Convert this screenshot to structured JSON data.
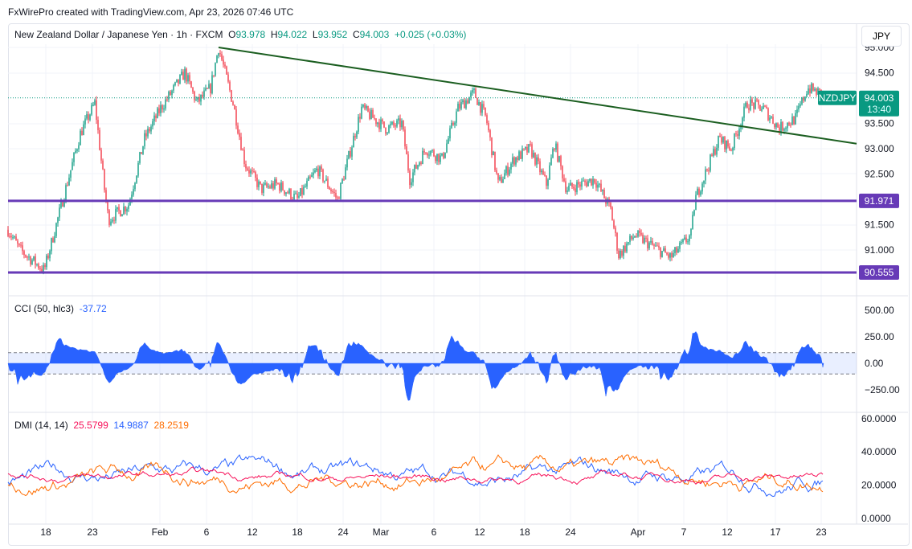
{
  "header": {
    "credit": "FxWirePro created with TradingView.com, Apr 23, 2026 07:46 UTC"
  },
  "legend": {
    "symbol": "New Zealand Dollar / Japanese Yen · 1h · FXCM",
    "o_label": "O",
    "o": "93.978",
    "h_label": "H",
    "h": "94.022",
    "l_label": "L",
    "l": "93.952",
    "c_label": "C",
    "c": "94.003",
    "change": "+0.025 (+0.03%)"
  },
  "currency_button": "JPY",
  "price_tag": {
    "symbol": "NZDJPY",
    "price": "94.003",
    "countdown": "13:40"
  },
  "colors": {
    "up": "#089981",
    "down": "#f23645",
    "trend": "#1b5e20",
    "level": "#673ab7",
    "cci": "#2962ff",
    "dmi_plus": "#2962ff",
    "dmi_minus": "#ff6d00",
    "adx": "#f7125a"
  },
  "chart_data": [
    {
      "type": "candlestick",
      "title": "NZDJPY 1h",
      "ylim": [
        90.4,
        95.0
      ],
      "y_ticks": [
        "95.000",
        "94.500",
        "93.500",
        "93.000",
        "92.500",
        "91.500",
        "91.000"
      ],
      "x_ticks": [
        "18",
        "23",
        "Feb",
        "6",
        "12",
        "18",
        "24",
        "Mar",
        "6",
        "12",
        "18",
        "24",
        "Apr",
        "7",
        "12",
        "17",
        "23"
      ],
      "price_path": [
        [
          0,
          91.4
        ],
        [
          15,
          91.0
        ],
        [
          45,
          90.6
        ],
        [
          65,
          91.8
        ],
        [
          90,
          93.3
        ],
        [
          108,
          93.9
        ],
        [
          120,
          92.2
        ],
        [
          125,
          91.6
        ],
        [
          150,
          91.9
        ],
        [
          170,
          93.2
        ],
        [
          190,
          93.8
        ],
        [
          220,
          94.5
        ],
        [
          235,
          93.9
        ],
        [
          252,
          94.2
        ],
        [
          262,
          95.0
        ],
        [
          280,
          93.9
        ],
        [
          295,
          92.7
        ],
        [
          315,
          92.2
        ],
        [
          335,
          92.3
        ],
        [
          360,
          92.0
        ],
        [
          385,
          92.6
        ],
        [
          410,
          92.0
        ],
        [
          440,
          93.8
        ],
        [
          470,
          93.4
        ],
        [
          490,
          93.5
        ],
        [
          500,
          92.4
        ],
        [
          520,
          93.0
        ],
        [
          540,
          92.8
        ],
        [
          560,
          93.8
        ],
        [
          580,
          94.1
        ],
        [
          595,
          93.6
        ],
        [
          610,
          92.3
        ],
        [
          630,
          92.8
        ],
        [
          650,
          93.0
        ],
        [
          670,
          92.3
        ],
        [
          680,
          93.1
        ],
        [
          695,
          92.2
        ],
        [
          730,
          92.4
        ],
        [
          750,
          91.8
        ],
        [
          760,
          90.9
        ],
        [
          780,
          91.3
        ],
        [
          800,
          91.1
        ],
        [
          825,
          90.85
        ],
        [
          850,
          91.3
        ],
        [
          855,
          92.0
        ],
        [
          870,
          92.6
        ],
        [
          885,
          93.2
        ],
        [
          900,
          93.0
        ],
        [
          920,
          93.9
        ],
        [
          940,
          93.8
        ],
        [
          960,
          93.4
        ],
        [
          980,
          93.6
        ],
        [
          995,
          94.2
        ],
        [
          1010,
          94.1
        ],
        [
          1015,
          94.003
        ]
      ],
      "levels": [
        {
          "price": 91.971,
          "label": "91.971"
        },
        {
          "price": 90.555,
          "label": "90.555"
        }
      ],
      "trendline": [
        [
          262,
          95.0
        ],
        [
          1056,
          93.1
        ]
      ]
    },
    {
      "type": "area",
      "title": "CCI (50, hlc3)",
      "value": "-37.72",
      "y_ticks": [
        "500.00",
        "250.00",
        "0.00",
        "−250.00"
      ],
      "band": [
        -100,
        100
      ],
      "ylim": [
        -400,
        550
      ]
    },
    {
      "type": "line",
      "title": "DMI (14, 14)",
      "values": [
        "25.5799",
        "14.9887",
        "28.2519"
      ],
      "y_ticks": [
        "60.0000",
        "40.0000",
        "20.0000",
        "0.0000"
      ],
      "ylim": [
        0,
        60
      ]
    }
  ]
}
